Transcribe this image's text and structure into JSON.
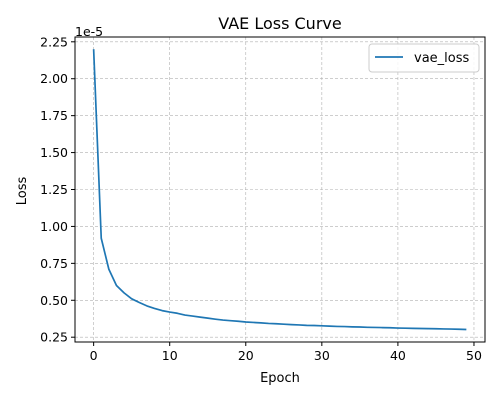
{
  "chart_data": {
    "type": "line",
    "title": "VAE Loss Curve",
    "xlabel": "Epoch",
    "ylabel": "Loss",
    "y_scale_label": "1e-5",
    "xlim": [
      -2.45,
      51.45
    ],
    "ylim": [
      0.2175,
      2.2825
    ],
    "x_ticks": [
      0,
      10,
      20,
      30,
      40,
      50
    ],
    "y_ticks": [
      0.25,
      0.5,
      0.75,
      1.0,
      1.25,
      1.5,
      1.75,
      2.0,
      2.25
    ],
    "y_tick_labels": [
      "0.25",
      "0.50",
      "0.75",
      "1.00",
      "1.25",
      "1.50",
      "1.75",
      "2.00",
      "2.25"
    ],
    "grid": true,
    "legend_position": "upper-right",
    "series": [
      {
        "name": "vae_loss",
        "color": "#1f77b4",
        "x": [
          0,
          1,
          2,
          3,
          4,
          5,
          6,
          7,
          8,
          9,
          10,
          11,
          12,
          13,
          14,
          15,
          16,
          17,
          18,
          19,
          20,
          21,
          22,
          23,
          24,
          25,
          26,
          27,
          28,
          29,
          30,
          31,
          32,
          33,
          34,
          35,
          36,
          37,
          38,
          39,
          40,
          41,
          42,
          43,
          44,
          45,
          46,
          47,
          48,
          49
        ],
        "values": [
          2.2,
          0.92,
          0.71,
          0.6,
          0.55,
          0.51,
          0.485,
          0.462,
          0.445,
          0.43,
          0.42,
          0.412,
          0.4,
          0.393,
          0.386,
          0.379,
          0.372,
          0.366,
          0.362,
          0.358,
          0.353,
          0.35,
          0.347,
          0.343,
          0.341,
          0.338,
          0.335,
          0.333,
          0.33,
          0.329,
          0.327,
          0.325,
          0.323,
          0.322,
          0.32,
          0.319,
          0.317,
          0.316,
          0.315,
          0.314,
          0.312,
          0.311,
          0.31,
          0.309,
          0.308,
          0.307,
          0.306,
          0.305,
          0.304,
          0.302
        ]
      }
    ]
  }
}
